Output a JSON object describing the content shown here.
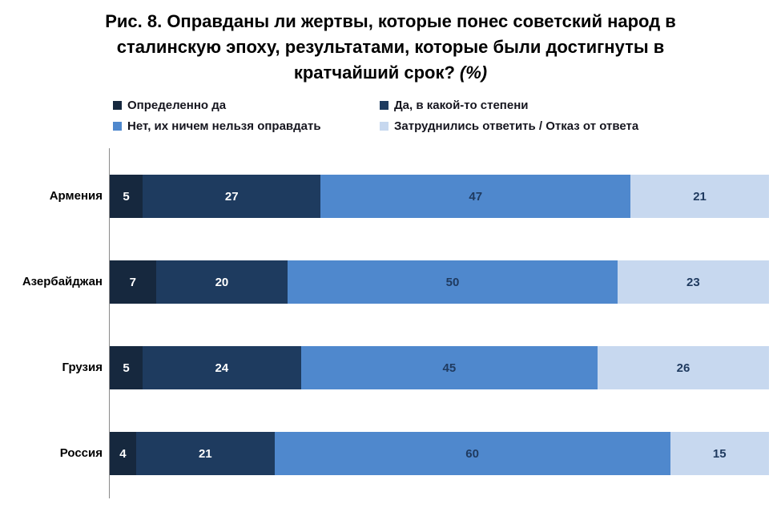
{
  "title": {
    "line1": "Рис. 8. Оправданы ли жертвы, которые понес советский народ в",
    "line2": "сталинскую эпоху, результатами, которые были достигнуты в",
    "line3": "кратчайший срок?",
    "suffix": "(%)"
  },
  "colors": {
    "axis_line": "#8a8a8a",
    "title_text": "#000000",
    "legend_text": "#16161f",
    "category_text": "#000000",
    "label_on_dark": "#ffffff",
    "label_on_light": "#1f3a5f"
  },
  "chart_data": {
    "type": "bar",
    "orientation": "horizontal",
    "stacked": true,
    "title": "Рис. 8. Оправданы ли жертвы, которые понес советский народ в сталинскую эпоху, результатами, которые были достигнуты в кратчайший срок? (%)",
    "categories": [
      "Армения",
      "Азербайджан",
      "Грузия",
      "Россия"
    ],
    "series": [
      {
        "name": "Определенно да",
        "color": "#16283e",
        "label_color": "#ffffff",
        "values": [
          5,
          7,
          5,
          4
        ]
      },
      {
        "name": "Да, в какой-то степени",
        "color": "#1e3b5f",
        "label_color": "#ffffff",
        "values": [
          27,
          20,
          24,
          21
        ]
      },
      {
        "name": "Нет, их ничем нельзя оправдать",
        "color": "#4f88cd",
        "label_color": "#1f3a5f",
        "values": [
          47,
          50,
          45,
          60
        ]
      },
      {
        "name": "Затруднились ответить / Отказ от ответа",
        "color": "#c7d8ef",
        "label_color": "#1f3a5f",
        "values": [
          21,
          23,
          26,
          15
        ]
      }
    ],
    "xlim": [
      0,
      100
    ],
    "value_labels": true,
    "legend_position": "top",
    "grid": false
  }
}
